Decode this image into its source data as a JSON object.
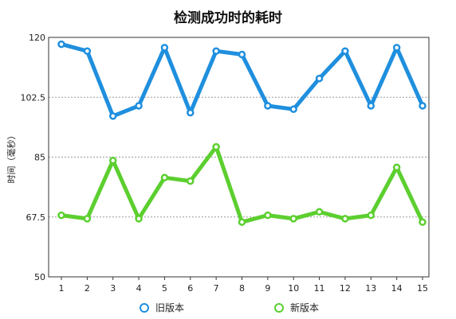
{
  "chart_data": {
    "type": "line",
    "title": "检测成功时的耗时",
    "xlabel": "",
    "ylabel": "时间（毫秒）",
    "x": [
      1,
      2,
      3,
      4,
      5,
      6,
      7,
      8,
      9,
      10,
      11,
      12,
      13,
      14,
      15
    ],
    "x_tick_labels": [
      "1",
      "2",
      "3",
      "4",
      "5",
      "6",
      "7",
      "8",
      "9",
      "10",
      "11",
      "12",
      "13",
      "14",
      "15"
    ],
    "ylim": [
      50,
      120
    ],
    "y_ticks": [
      50,
      67.5,
      85,
      102.5,
      120
    ],
    "y_tick_labels": [
      "50",
      "67.5",
      "85",
      "102.5",
      "120"
    ],
    "grid": "horizontal dashed",
    "legend_position": "bottom",
    "series": [
      {
        "name": "旧版本",
        "color": "#1f8fde",
        "values": [
          118,
          116,
          97,
          100,
          117,
          98,
          116,
          115,
          100,
          99,
          108,
          116,
          100,
          117,
          100
        ]
      },
      {
        "name": "新版本",
        "color": "#5ccf2f",
        "values": [
          68,
          67,
          84,
          67,
          79,
          78,
          88,
          66,
          68,
          67,
          69,
          67,
          68,
          82,
          66
        ]
      }
    ]
  }
}
